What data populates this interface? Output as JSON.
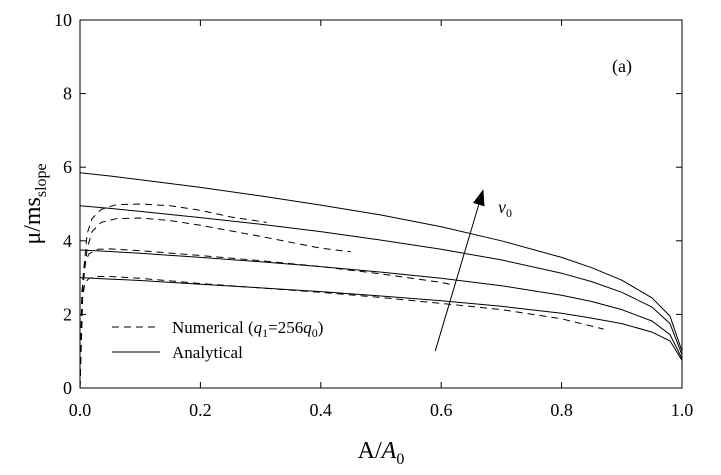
{
  "chart_data": {
    "type": "line",
    "panel_label": "(a)",
    "xlabel": "A/A0",
    "xlabel_parts": {
      "base": "A/",
      "italic": "A",
      "sub": "0"
    },
    "ylabel": "μ/ms_slope",
    "ylabel_parts": {
      "base": "μ/ms",
      "sub": "slope"
    },
    "xlim": [
      0,
      1
    ],
    "ylim": [
      0,
      10
    ],
    "x_ticks": [
      0.0,
      0.2,
      0.4,
      0.6,
      0.8,
      1.0
    ],
    "x_tick_labels": [
      "0.0",
      "0.2",
      "0.4",
      "0.6",
      "0.8",
      "1.0"
    ],
    "y_ticks": [
      0,
      2,
      4,
      6,
      8,
      10
    ],
    "y_tick_labels": [
      "0",
      "2",
      "4",
      "6",
      "8",
      "10"
    ],
    "grid": false,
    "legend_position": "bottom-left",
    "legend": [
      {
        "label": "Numerical (q1=256q0)",
        "style": "dashed",
        "parts": {
          "pre": "Numerical (",
          "v1": "q",
          "s1": "1",
          "mid": "=256",
          "v2": "q",
          "s2": "0",
          "post": ")"
        }
      },
      {
        "label": "Analytical",
        "style": "solid"
      }
    ],
    "annotation": {
      "text": "v0",
      "parts": {
        "main": "v",
        "sub": "0"
      },
      "arrow_from": [
        0.59,
        1.0
      ],
      "arrow_to": [
        0.67,
        5.4
      ]
    },
    "series": [
      {
        "style": "solid",
        "x": [
          0,
          0.05,
          0.1,
          0.2,
          0.3,
          0.4,
          0.5,
          0.6,
          0.7,
          0.8,
          0.85,
          0.9,
          0.95,
          0.98,
          1.0
        ],
        "y": [
          3.0,
          2.96,
          2.92,
          2.82,
          2.72,
          2.62,
          2.5,
          2.37,
          2.22,
          2.03,
          1.9,
          1.75,
          1.52,
          1.28,
          0.75
        ]
      },
      {
        "style": "solid",
        "x": [
          0,
          0.05,
          0.1,
          0.2,
          0.3,
          0.4,
          0.5,
          0.6,
          0.7,
          0.8,
          0.85,
          0.9,
          0.95,
          0.98,
          1.0
        ],
        "y": [
          3.75,
          3.71,
          3.66,
          3.55,
          3.43,
          3.3,
          3.15,
          2.98,
          2.78,
          2.52,
          2.35,
          2.13,
          1.82,
          1.45,
          0.8
        ]
      },
      {
        "style": "solid",
        "x": [
          0,
          0.05,
          0.1,
          0.2,
          0.3,
          0.4,
          0.5,
          0.6,
          0.7,
          0.8,
          0.85,
          0.9,
          0.95,
          0.98,
          1.0
        ],
        "y": [
          4.95,
          4.88,
          4.8,
          4.63,
          4.45,
          4.25,
          4.02,
          3.77,
          3.48,
          3.12,
          2.89,
          2.6,
          2.2,
          1.75,
          0.9
        ]
      },
      {
        "style": "solid",
        "x": [
          0,
          0.05,
          0.1,
          0.2,
          0.3,
          0.4,
          0.5,
          0.6,
          0.7,
          0.8,
          0.85,
          0.9,
          0.95,
          0.98,
          1.0
        ],
        "y": [
          5.85,
          5.76,
          5.66,
          5.45,
          5.22,
          4.97,
          4.7,
          4.38,
          4.0,
          3.55,
          3.27,
          2.93,
          2.45,
          1.95,
          1.0
        ]
      },
      {
        "style": "dashed",
        "x": [
          0.0,
          0.003,
          0.008,
          0.015,
          0.03,
          0.05,
          0.1,
          0.2,
          0.3,
          0.4,
          0.5,
          0.6,
          0.7,
          0.8,
          0.87
        ],
        "y": [
          0.0,
          2.3,
          2.85,
          2.98,
          3.03,
          3.03,
          2.98,
          2.84,
          2.72,
          2.6,
          2.46,
          2.3,
          2.13,
          1.88,
          1.6
        ]
      },
      {
        "style": "dashed",
        "x": [
          0.0,
          0.003,
          0.008,
          0.015,
          0.03,
          0.05,
          0.1,
          0.2,
          0.3,
          0.4,
          0.5,
          0.6,
          0.62
        ],
        "y": [
          0.0,
          2.6,
          3.4,
          3.65,
          3.77,
          3.78,
          3.73,
          3.6,
          3.46,
          3.3,
          3.1,
          2.87,
          2.8
        ]
      },
      {
        "style": "dashed",
        "x": [
          0.0,
          0.005,
          0.012,
          0.02,
          0.035,
          0.06,
          0.1,
          0.15,
          0.2,
          0.3,
          0.4,
          0.45
        ],
        "y": [
          0.0,
          2.8,
          3.8,
          4.25,
          4.5,
          4.6,
          4.62,
          4.55,
          4.42,
          4.12,
          3.8,
          3.7
        ]
      },
      {
        "style": "dashed",
        "x": [
          0.0,
          0.005,
          0.012,
          0.02,
          0.035,
          0.06,
          0.1,
          0.15,
          0.2,
          0.25,
          0.31
        ],
        "y": [
          0.0,
          3.0,
          4.2,
          4.6,
          4.85,
          4.98,
          5.0,
          4.95,
          4.83,
          4.65,
          4.5
        ]
      }
    ]
  }
}
